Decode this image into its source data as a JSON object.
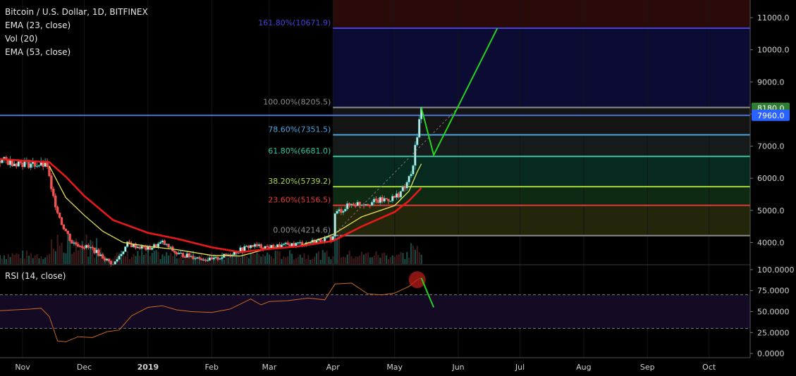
{
  "legend": {
    "title": "Bitcoin / U.S. Dollar, 1D, BITFINEX",
    "ema23": "EMA (23, close)",
    "vol": "Vol (20)",
    "ema53": "EMA (53, close)"
  },
  "rsi_label": "RSI (14, close)",
  "colors": {
    "background": "#000000",
    "up_candle": "#26a69a",
    "down_candle": "#ef5350",
    "ema23": "#e6e05a",
    "ema53": "#e8191a",
    "rsi_line": "#c86a20",
    "projection": "#22d322",
    "fib_zone_top": "#0d0d3d",
    "fib_zone_red": "#2a0a0a"
  },
  "chart_data": [
    {
      "type": "candlestick",
      "title": "Bitcoin / U.S. Dollar, 1D, BITFINEX",
      "y_axis": {
        "ticks": [
          "11000.0",
          "10000.0",
          "9000.0",
          "8000.0",
          "7000.0",
          "6000.0",
          "5000.0",
          "4000.0"
        ],
        "tick_values": [
          11000,
          10000,
          9000,
          8000,
          7000,
          6000,
          5000,
          4000
        ],
        "range": [
          3330,
          11550
        ]
      },
      "x_axis": {
        "ticks": [
          "Nov",
          "Dec",
          "2019",
          "Feb",
          "Mar",
          "Apr",
          "May",
          "Jun",
          "Jul",
          "Aug",
          "Sep",
          "Oct"
        ],
        "tick_dates": [
          "2018-11-01",
          "2018-12-01",
          "2019-01-01",
          "2019-02-01",
          "2019-03-01",
          "2019-04-01",
          "2019-05-01",
          "2019-06-01",
          "2019-07-01",
          "2019-08-01",
          "2019-09-01",
          "2019-10-01"
        ],
        "range": [
          "2018-10-21",
          "2019-10-21"
        ]
      },
      "price_badges": [
        {
          "value": "8180.0",
          "color": "#2e7d32"
        },
        {
          "value": "7960.0",
          "color": "#2962ff"
        }
      ],
      "horizontal_line": {
        "value": 7960,
        "color": "#4a6fd8"
      },
      "fib_start_date": "2019-04-01",
      "fib_levels": [
        {
          "label": "161.80%(10671.9)",
          "value": 10671.9,
          "color": "#4343d8"
        },
        {
          "label": "100.00%(8205.5)",
          "value": 8205.5,
          "color": "#8c8c8c"
        },
        {
          "label": "78.60%(7351.5)",
          "value": 7351.5,
          "color": "#4aa3df"
        },
        {
          "label": "61.80%(6681.0)",
          "value": 6681.0,
          "color": "#2ec4a0"
        },
        {
          "label": "38.20%(5739.2)",
          "value": 5739.2,
          "color": "#a5d63f"
        },
        {
          "label": "23.60%(5156.5)",
          "value": 5156.5,
          "color": "#e53935"
        },
        {
          "label": "0.00%(4214.6)",
          "value": 4214.6,
          "color": "#8c8c8c"
        }
      ],
      "projection_path": [
        {
          "date": "2019-05-14",
          "value": 8200
        },
        {
          "date": "2019-05-20",
          "value": 6720
        },
        {
          "date": "2019-06-20",
          "value": 10671.9
        }
      ],
      "series": [
        {
          "name": "EMA (23, close)",
          "points": [
            [
              "2018-11-14",
              6380
            ],
            [
              "2018-11-22",
              5400
            ],
            [
              "2018-12-01",
              4850
            ],
            [
              "2018-12-10",
              4350
            ],
            [
              "2018-12-20",
              4000
            ],
            [
              "2019-01-01",
              3880
            ],
            [
              "2019-01-15",
              3780
            ],
            [
              "2019-02-01",
              3600
            ],
            [
              "2019-02-15",
              3580
            ],
            [
              "2019-03-01",
              3820
            ],
            [
              "2019-03-15",
              3880
            ],
            [
              "2019-04-01",
              4250
            ],
            [
              "2019-04-15",
              4800
            ],
            [
              "2019-05-01",
              5150
            ],
            [
              "2019-05-08",
              5600
            ],
            [
              "2019-05-12",
              6200
            ],
            [
              "2019-05-14",
              6450
            ]
          ]
        },
        {
          "name": "EMA (53, close)",
          "points": [
            [
              "2018-10-21",
              6600
            ],
            [
              "2018-11-01",
              6550
            ],
            [
              "2018-11-14",
              6500
            ],
            [
              "2018-11-22",
              6050
            ],
            [
              "2018-12-01",
              5450
            ],
            [
              "2018-12-15",
              4700
            ],
            [
              "2019-01-01",
              4300
            ],
            [
              "2019-01-15",
              4120
            ],
            [
              "2019-02-01",
              3850
            ],
            [
              "2019-02-15",
              3700
            ],
            [
              "2019-03-01",
              3800
            ],
            [
              "2019-03-15",
              3880
            ],
            [
              "2019-04-01",
              4050
            ],
            [
              "2019-04-15",
              4500
            ],
            [
              "2019-05-01",
              4950
            ],
            [
              "2019-05-08",
              5300
            ],
            [
              "2019-05-14",
              5700
            ]
          ]
        }
      ]
    },
    {
      "type": "line",
      "title": "RSI (14, close)",
      "y_axis": {
        "ticks": [
          "100.0000",
          "75.0000",
          "50.0000",
          "25.0000",
          "0.0000"
        ],
        "tick_values": [
          100,
          75,
          50,
          25,
          0
        ],
        "range": [
          -5,
          105
        ],
        "bands": [
          70,
          30
        ]
      },
      "series": [
        {
          "name": "RSI (14, close)",
          "points": [
            [
              "2018-10-21",
              51
            ],
            [
              "2018-10-28",
              52
            ],
            [
              "2018-11-05",
              53
            ],
            [
              "2018-11-10",
              54
            ],
            [
              "2018-11-14",
              44
            ],
            [
              "2018-11-18",
              15
            ],
            [
              "2018-11-22",
              14
            ],
            [
              "2018-11-28",
              20
            ],
            [
              "2018-12-05",
              19
            ],
            [
              "2018-12-12",
              26
            ],
            [
              "2018-12-18",
              28
            ],
            [
              "2018-12-24",
              45
            ],
            [
              "2019-01-01",
              55
            ],
            [
              "2019-01-08",
              57
            ],
            [
              "2019-01-15",
              52
            ],
            [
              "2019-01-22",
              50
            ],
            [
              "2019-02-01",
              49
            ],
            [
              "2019-02-10",
              53
            ],
            [
              "2019-02-20",
              65
            ],
            [
              "2019-02-25",
              58
            ],
            [
              "2019-03-01",
              62
            ],
            [
              "2019-03-10",
              63
            ],
            [
              "2019-03-20",
              66
            ],
            [
              "2019-03-28",
              64
            ],
            [
              "2019-04-02",
              83
            ],
            [
              "2019-04-10",
              84
            ],
            [
              "2019-04-18",
              71
            ],
            [
              "2019-04-25",
              70
            ],
            [
              "2019-05-01",
              72
            ],
            [
              "2019-05-08",
              80
            ],
            [
              "2019-05-12",
              88
            ],
            [
              "2019-05-14",
              90
            ]
          ]
        }
      ],
      "projection": [
        {
          "date": "2019-05-14",
          "value": 90
        },
        {
          "date": "2019-05-20",
          "value": 55
        }
      ],
      "highlight": {
        "date": "2019-05-12",
        "value": 88
      }
    }
  ]
}
